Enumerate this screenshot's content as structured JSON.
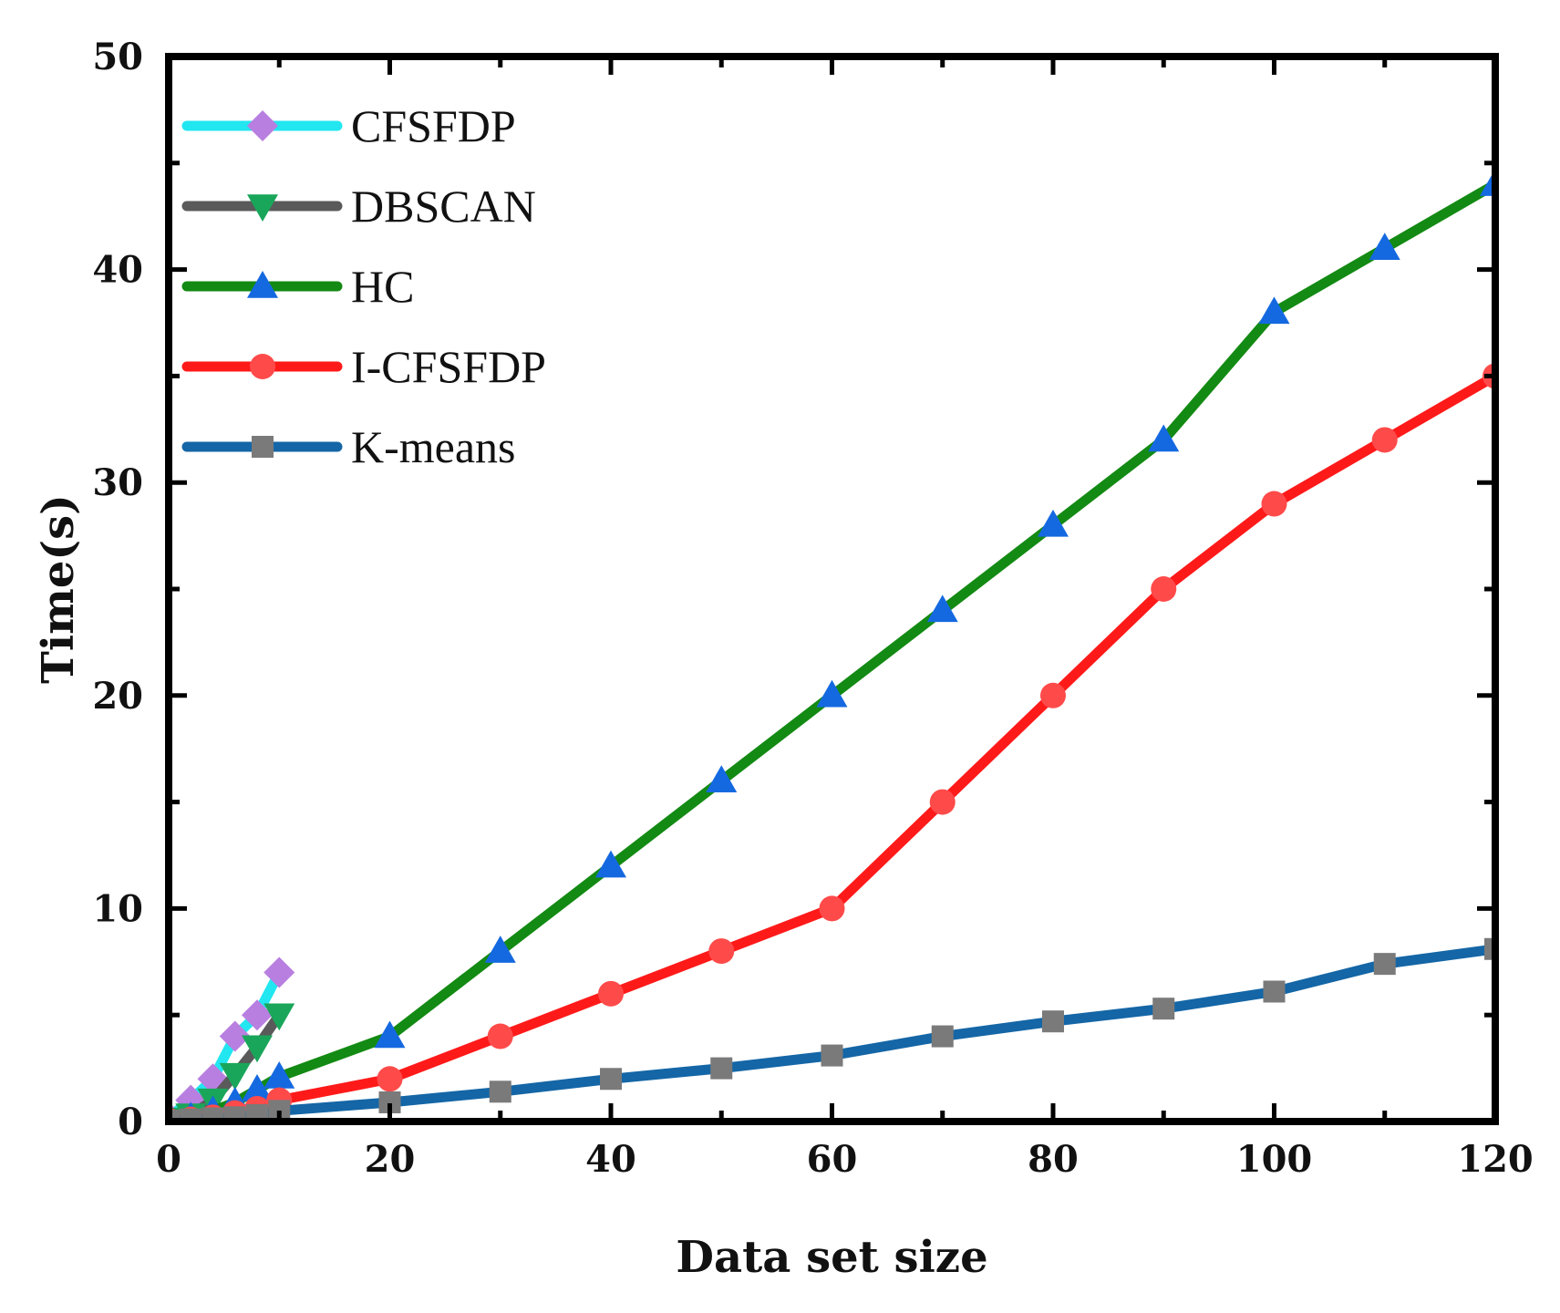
{
  "chart_data": {
    "type": "line",
    "title": "",
    "xlabel": "Data set size",
    "ylabel": "Time(s)",
    "xlim": [
      0,
      120
    ],
    "ylim": [
      0,
      50
    ],
    "xticks": [
      0,
      20,
      40,
      60,
      80,
      100,
      120
    ],
    "yticks": [
      0,
      10,
      20,
      30,
      40,
      50
    ],
    "grid": false,
    "legend_position": "top-left",
    "series": [
      {
        "name": "CFSFDP",
        "line_color": "#22e6f0",
        "marker_color": "#b87fe0",
        "marker": "diamond",
        "x": [
          0,
          2,
          4,
          6,
          8,
          10
        ],
        "y": [
          0.2,
          1.0,
          2.0,
          4.0,
          5.0,
          7.0
        ]
      },
      {
        "name": "DBSCAN",
        "line_color": "#5a5a5a",
        "marker_color": "#1aa65a",
        "marker": "triangle-down",
        "x": [
          0,
          2,
          4,
          6,
          8,
          10
        ],
        "y": [
          0.1,
          0.3,
          1.0,
          2.2,
          3.5,
          5.0
        ]
      },
      {
        "name": "HC",
        "line_color": "#138a13",
        "marker_color": "#1569e0",
        "marker": "triangle-up",
        "x": [
          0,
          2,
          4,
          6,
          8,
          10,
          20,
          30,
          40,
          50,
          60,
          70,
          80,
          90,
          100,
          110,
          120
        ],
        "y": [
          0.1,
          0.2,
          0.5,
          0.9,
          1.5,
          2.1,
          4,
          8,
          12,
          16,
          20,
          24,
          28,
          32,
          38,
          41,
          44
        ]
      },
      {
        "name": "I-CFSFDP",
        "line_color": "#ff1a1a",
        "marker_color": "#ff4a4a",
        "marker": "circle",
        "x": [
          0,
          2,
          4,
          6,
          8,
          10,
          20,
          30,
          40,
          50,
          60,
          70,
          80,
          90,
          100,
          110,
          120
        ],
        "y": [
          0.05,
          0.1,
          0.2,
          0.4,
          0.6,
          1.0,
          2,
          4,
          6,
          8,
          10,
          15,
          20,
          25,
          29,
          32,
          35
        ]
      },
      {
        "name": "K-means",
        "line_color": "#1466a6",
        "marker_color": "#7a7a7a",
        "marker": "square",
        "x": [
          0,
          2,
          4,
          6,
          8,
          10,
          20,
          30,
          40,
          50,
          60,
          70,
          80,
          90,
          100,
          110,
          120
        ],
        "y": [
          0.05,
          0.1,
          0.15,
          0.2,
          0.3,
          0.5,
          0.9,
          1.4,
          2.0,
          2.5,
          3.1,
          4.0,
          4.7,
          5.3,
          6.1,
          7.4,
          8.1
        ]
      }
    ]
  }
}
